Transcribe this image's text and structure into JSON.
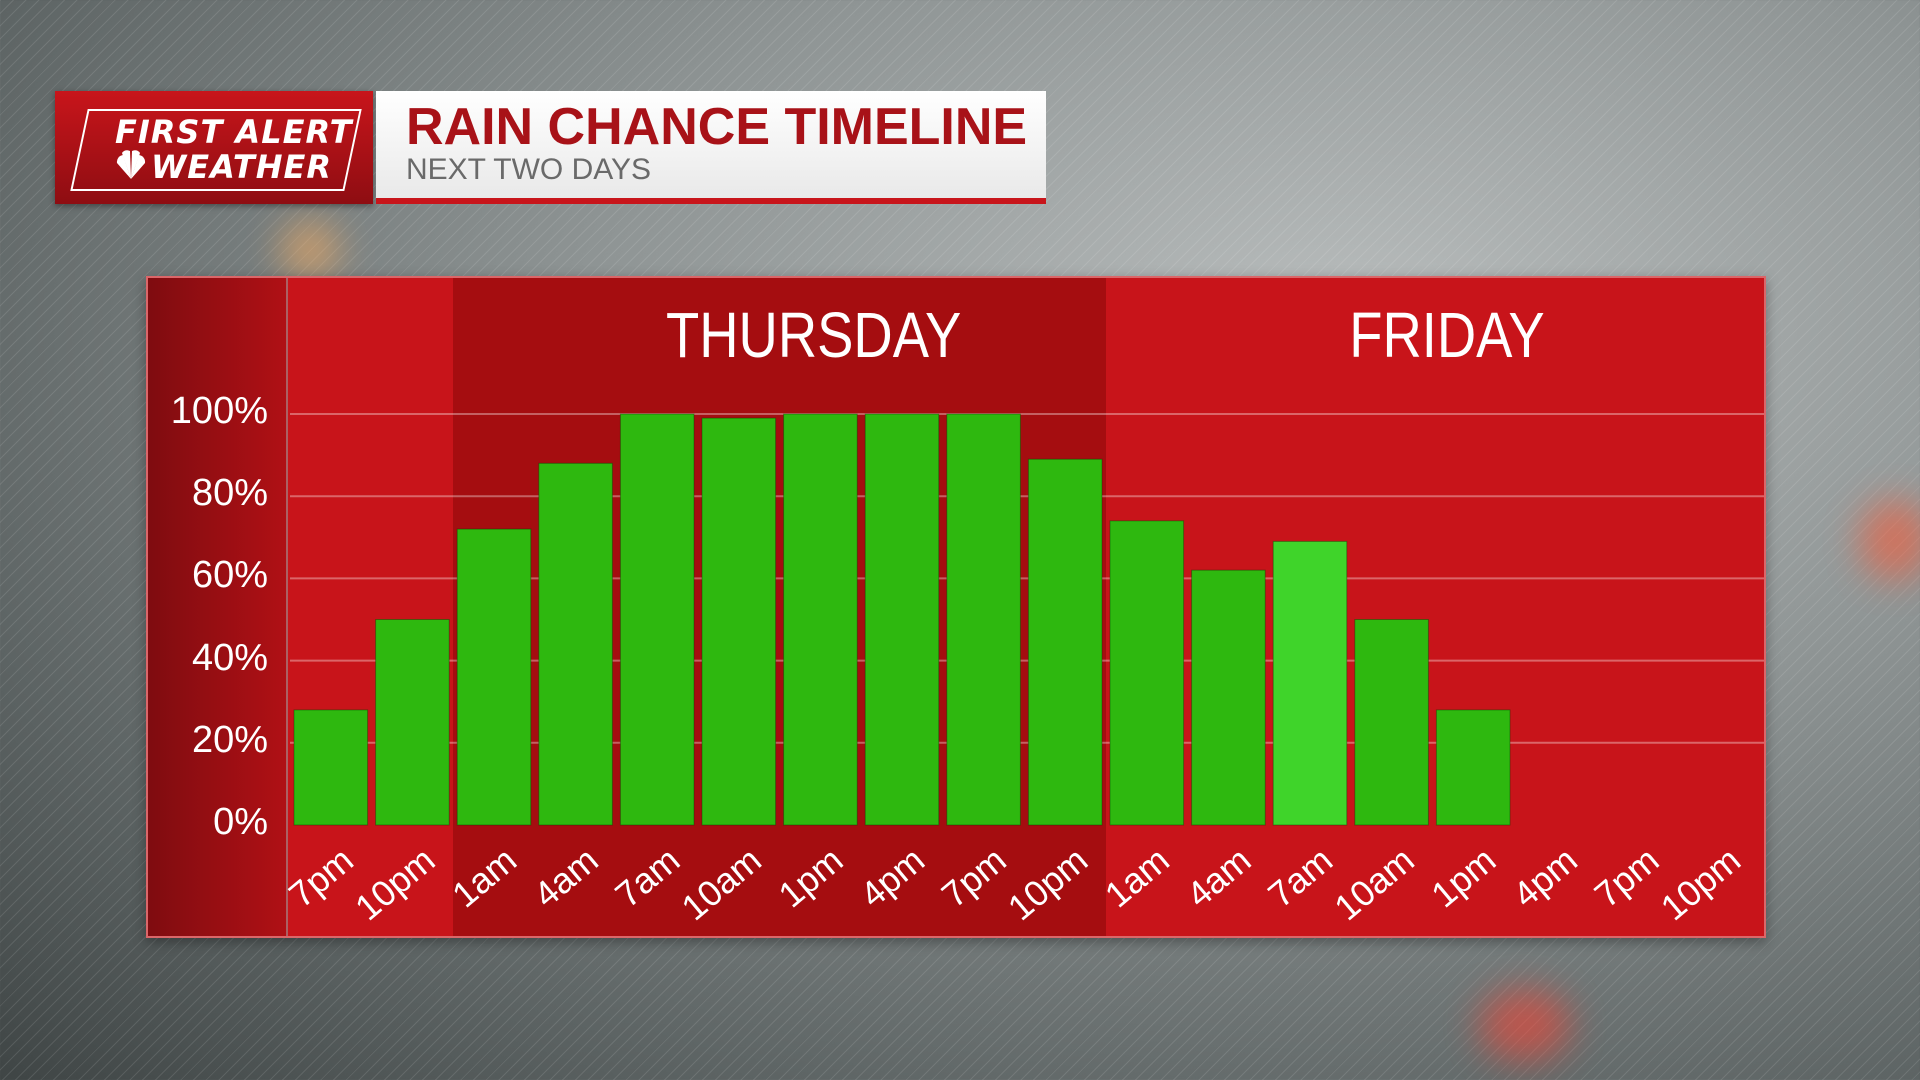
{
  "header": {
    "logo_line1": "FIRST ALERT",
    "logo_line2": "WEATHER",
    "title": "RAIN CHANCE TIMELINE",
    "subtitle": "NEXT TWO DAYS"
  },
  "colors": {
    "accent_red": "#c8151b",
    "bar_green": "#2eb80f",
    "bar_highlight": "#3fd42a",
    "title_red": "#a81218"
  },
  "chart_data": {
    "type": "bar",
    "title": "RAIN CHANCE TIMELINE",
    "days": [
      {
        "label": "THURSDAY",
        "start_index": 2,
        "end_index": 9
      },
      {
        "label": "FRIDAY",
        "start_index": 10,
        "end_index": 17
      }
    ],
    "categories": [
      "7pm",
      "10pm",
      "1am",
      "4am",
      "7am",
      "10am",
      "1pm",
      "4pm",
      "7pm",
      "10pm",
      "1am",
      "4am",
      "7am",
      "10am",
      "1pm",
      "4pm",
      "7pm",
      "10pm"
    ],
    "values": [
      28,
      50,
      72,
      88,
      100,
      99,
      100,
      100,
      100,
      89,
      74,
      62,
      69,
      50,
      28,
      null,
      null,
      null
    ],
    "highlight_index": 12,
    "yticks": [
      "0%",
      "20%",
      "40%",
      "60%",
      "80%",
      "100%"
    ],
    "ylim": [
      0,
      100
    ],
    "grid": true
  }
}
